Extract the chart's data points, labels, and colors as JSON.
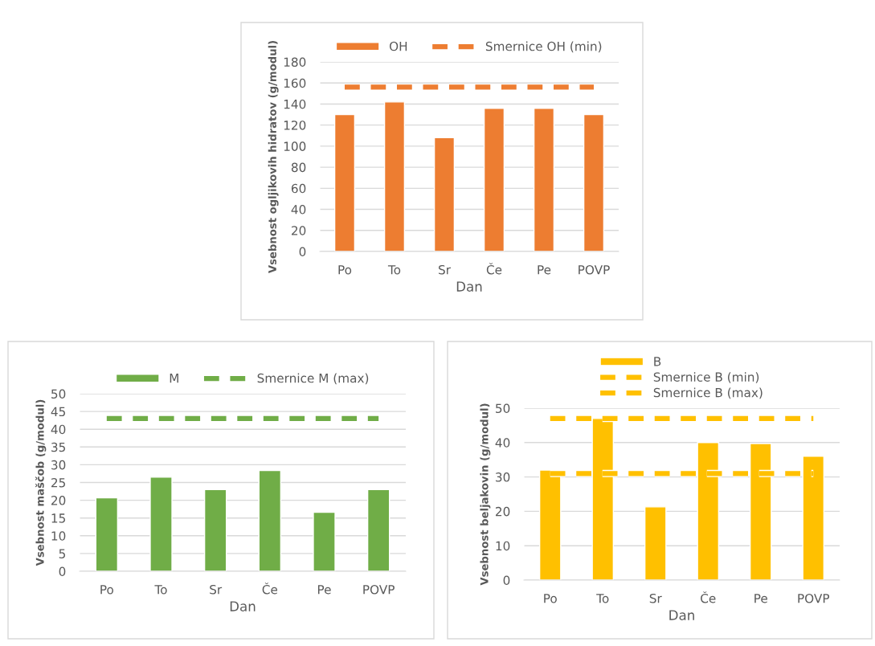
{
  "chart_data": [
    {
      "type": "bar",
      "xlabel": "Dan",
      "ylabel": "Vsebnost ogljikovih hidratov (g/modul)",
      "categories": [
        "Po",
        "To",
        "Sr",
        "Če",
        "Pe",
        "POVP"
      ],
      "series": [
        {
          "name": "OH",
          "color": "#ed7d31",
          "values": [
            130,
            142,
            108,
            136,
            136,
            130
          ]
        },
        {
          "name": "Smernice OH (min)",
          "type": "line",
          "line_style": "dashed",
          "color": "#ed7d31",
          "values": [
            156,
            156,
            156,
            156,
            156,
            156
          ]
        }
      ],
      "ylim": [
        0,
        180
      ],
      "yticks": [
        0,
        20,
        40,
        60,
        80,
        100,
        120,
        140,
        160,
        180
      ],
      "grid": "y",
      "legend": "top"
    },
    {
      "type": "bar",
      "xlabel": "Dan",
      "ylabel": "Vsebnost maščob (g/modul)",
      "categories": [
        "Po",
        "To",
        "Sr",
        "Če",
        "Pe",
        "POVP"
      ],
      "series": [
        {
          "name": "M",
          "color": "#70ad47",
          "values": [
            20.7,
            26.5,
            23,
            28.4,
            16.6,
            23
          ]
        },
        {
          "name": "Smernice M (max)",
          "type": "line",
          "line_style": "dashed",
          "color": "#70ad47",
          "values": [
            43,
            43,
            43,
            43,
            43,
            43
          ]
        }
      ],
      "ylim": [
        0,
        50
      ],
      "yticks": [
        0,
        5,
        10,
        15,
        20,
        25,
        30,
        35,
        40,
        45,
        50
      ],
      "grid": "y",
      "legend": "top"
    },
    {
      "type": "bar",
      "xlabel": "Dan",
      "ylabel": "Vsebnost beljakovin (g/modul)",
      "categories": [
        "Po",
        "To",
        "Sr",
        "Če",
        "Pe",
        "POVP"
      ],
      "series": [
        {
          "name": "B",
          "color": "#ffc000",
          "values": [
            32,
            47,
            21.3,
            40,
            39.7,
            36
          ]
        },
        {
          "name": "Smernice B (min)",
          "type": "line",
          "line_style": "dashed",
          "color": "#ffc000",
          "values": [
            31,
            31,
            31,
            31,
            31,
            31
          ]
        },
        {
          "name": "Smernice B (max)",
          "type": "line",
          "line_style": "dashed",
          "color": "#ffc000",
          "values": [
            47,
            47,
            47,
            47,
            47,
            47
          ]
        }
      ],
      "ylim": [
        0,
        50
      ],
      "yticks": [
        0,
        10,
        20,
        30,
        40,
        50
      ],
      "grid": "y",
      "legend": "top"
    }
  ]
}
